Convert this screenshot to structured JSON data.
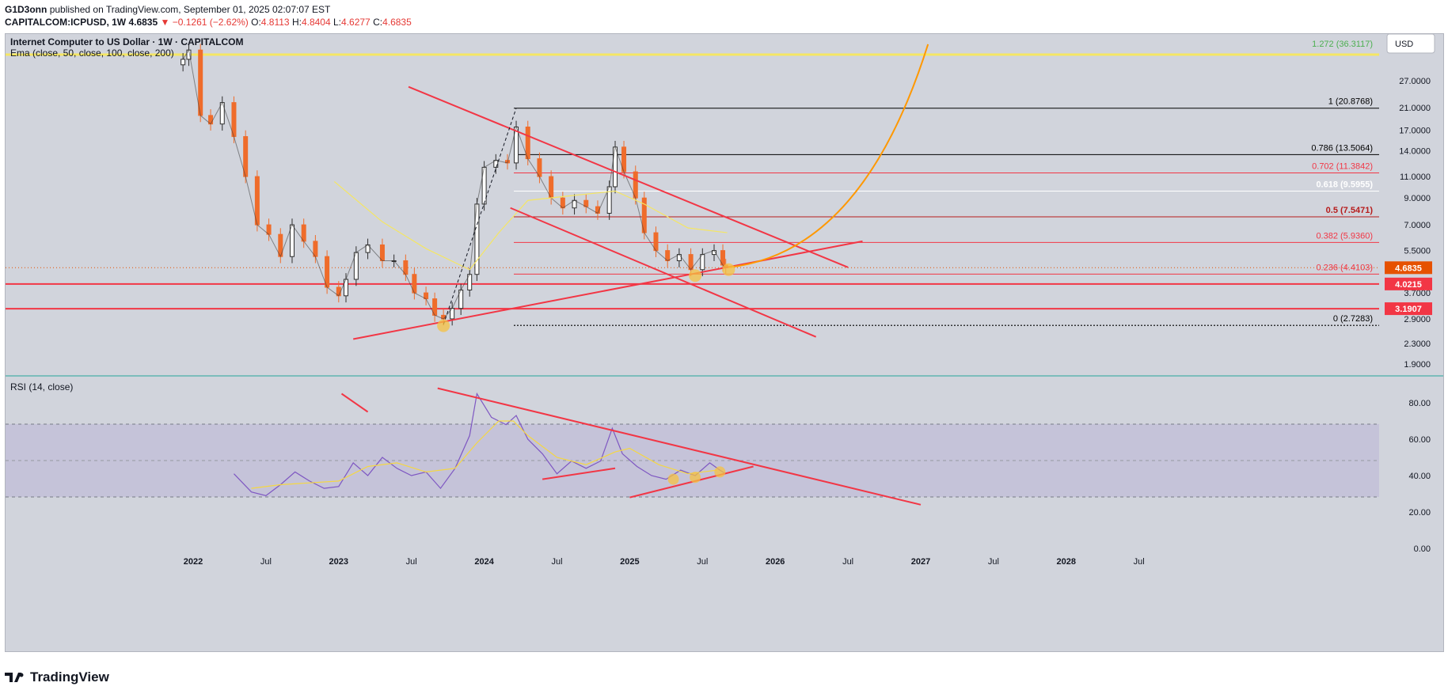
{
  "header": {
    "author": "G1D3onn",
    "published_text": "published on TradingView.com, September 01, 2025 02:07:07 EST",
    "symbol": "CAPITALCOM:ICPUSD, 1W",
    "last": "4.6835",
    "change": "▼ −0.1261 (−2.62%)",
    "o_label": "O:",
    "o": "4.8113",
    "h_label": "H:",
    "h": "4.8404",
    "l_label": "L:",
    "l": "4.6277",
    "c_label": "C:",
    "c": "4.6835"
  },
  "legend": {
    "title": "Internet Computer to US Dollar · 1W · CAPITALCOM",
    "ema": "Ema (close, 50, close, 100, close, 200)",
    "rsi": "RSI (14, close)"
  },
  "currency_button": "USD",
  "footer": {
    "brand": "TradingView"
  },
  "colors": {
    "background": "#d1d4dc",
    "candle_up": "#2e2e2e",
    "candle_down": "#ef6c2b",
    "trendline": "#f23645",
    "fib_black": "#000000",
    "fib_white": "#ffffff",
    "rsi_line": "#7e57c2",
    "rsi_ma": "#f5d742",
    "ema": "#f5e663",
    "arc": "#ff9800",
    "highlight": "#f5c242"
  },
  "chart_data": [
    {
      "type": "candlestick",
      "title": "Internet Computer to US Dollar · 1W · CAPITALCOM",
      "y_scale": "log",
      "ylim": [
        1.7,
        40
      ],
      "y_ticks": [
        "27.0000",
        "21.0000",
        "17.0000",
        "14.0000",
        "11.0000",
        "9.0000",
        "7.0000",
        "5.5000",
        "3.7000",
        "2.9000",
        "2.3000",
        "1.9000"
      ],
      "x_ticks": [
        "2022",
        "Jul",
        "2023",
        "Jul",
        "2024",
        "Jul",
        "2025",
        "Jul",
        "2026",
        "Jul",
        "2027",
        "Jul",
        "2028",
        "Jul"
      ],
      "fib_levels": [
        {
          "ratio": "1.272",
          "value": 36.3117,
          "label": "1.272 (36.3117)"
        },
        {
          "ratio": "1",
          "value": 20.8768,
          "label": "1 (20.8768)"
        },
        {
          "ratio": "0.786",
          "value": 13.5064,
          "label": "0.786 (13.5064)"
        },
        {
          "ratio": "0.702",
          "value": 11.3842,
          "label": "0.702 (11.3842)"
        },
        {
          "ratio": "0.618",
          "value": 9.5955,
          "label": "0.618 (9.5955)"
        },
        {
          "ratio": "0.5",
          "value": 7.5471,
          "label": "0.5 (7.5471)"
        },
        {
          "ratio": "0.382",
          "value": 5.936,
          "label": "0.382 (5.9360)"
        },
        {
          "ratio": "0.236",
          "value": 4.4103,
          "label": "0.236 (4.4103)"
        },
        {
          "ratio": "0",
          "value": 2.7283,
          "label": "0 (2.7283)"
        }
      ],
      "horizontal_levels": [
        {
          "value": 4.0215,
          "label": "4.0215"
        },
        {
          "value": 3.1907,
          "label": "3.1907"
        }
      ],
      "last_price": {
        "value": 4.6835,
        "label": "4.6835"
      },
      "series": [
        {
          "name": "ICPUSD weekly",
          "points": [
            [
              2021.93,
              33
            ],
            [
              2021.97,
              36
            ],
            [
              2022.05,
              19.5
            ],
            [
              2022.12,
              18
            ],
            [
              2022.2,
              22
            ],
            [
              2022.28,
              16
            ],
            [
              2022.36,
              11
            ],
            [
              2022.44,
              7
            ],
            [
              2022.52,
              6.4
            ],
            [
              2022.6,
              5.2
            ],
            [
              2022.68,
              7
            ],
            [
              2022.76,
              6
            ],
            [
              2022.84,
              5.2
            ],
            [
              2022.92,
              3.9
            ],
            [
              2023.0,
              3.6
            ],
            [
              2023.05,
              4.2
            ],
            [
              2023.12,
              5.4
            ],
            [
              2023.2,
              5.8
            ],
            [
              2023.3,
              5
            ],
            [
              2023.38,
              5
            ],
            [
              2023.46,
              4.4
            ],
            [
              2023.52,
              3.7
            ],
            [
              2023.6,
              3.5
            ],
            [
              2023.66,
              3.0
            ],
            [
              2023.72,
              2.9
            ],
            [
              2023.78,
              3.2
            ],
            [
              2023.84,
              3.8
            ],
            [
              2023.9,
              4.4
            ],
            [
              2023.95,
              8.5
            ],
            [
              2024.0,
              12
            ],
            [
              2024.08,
              12.8
            ],
            [
              2024.16,
              12.5
            ],
            [
              2024.22,
              17.5
            ],
            [
              2024.3,
              13
            ],
            [
              2024.38,
              11
            ],
            [
              2024.46,
              9
            ],
            [
              2024.54,
              8.2
            ],
            [
              2024.62,
              8.8
            ],
            [
              2024.7,
              8.3
            ],
            [
              2024.78,
              7.8
            ],
            [
              2024.86,
              10
            ],
            [
              2024.9,
              14.5
            ],
            [
              2024.96,
              11.5
            ],
            [
              2025.04,
              9
            ],
            [
              2025.1,
              6.5
            ],
            [
              2025.18,
              5.5
            ],
            [
              2025.26,
              5
            ],
            [
              2025.34,
              5.3
            ],
            [
              2025.42,
              4.6
            ],
            [
              2025.5,
              5.3
            ],
            [
              2025.58,
              5.5
            ],
            [
              2025.64,
              4.8
            ],
            [
              2025.66,
              4.68
            ]
          ]
        },
        {
          "name": "Ema",
          "points": [
            [
              2022.97,
              10.5
            ],
            [
              2023.3,
              7.2
            ],
            [
              2023.6,
              5.6
            ],
            [
              2023.9,
              4.6
            ],
            [
              2024.1,
              6.5
            ],
            [
              2024.3,
              8.8
            ],
            [
              2024.6,
              9.2
            ],
            [
              2024.9,
              9.6
            ],
            [
              2025.1,
              8.5
            ],
            [
              2025.4,
              6.8
            ],
            [
              2025.67,
              6.5
            ]
          ]
        }
      ]
    },
    {
      "type": "line",
      "title": "RSI (14, close)",
      "ylim": [
        0,
        95
      ],
      "y_ticks": [
        "80.00",
        "60.00",
        "40.00",
        "20.00",
        "0.00"
      ],
      "bands": [
        70,
        50,
        30
      ],
      "series": [
        {
          "name": "RSI",
          "points": [
            [
              2022.28,
              41
            ],
            [
              2022.4,
              31
            ],
            [
              2022.5,
              29
            ],
            [
              2022.6,
              35
            ],
            [
              2022.7,
              42
            ],
            [
              2022.8,
              37
            ],
            [
              2022.9,
              33
            ],
            [
              2023.0,
              34
            ],
            [
              2023.1,
              47
            ],
            [
              2023.2,
              40
            ],
            [
              2023.3,
              50
            ],
            [
              2023.4,
              44
            ],
            [
              2023.5,
              40
            ],
            [
              2023.6,
              42
            ],
            [
              2023.7,
              33
            ],
            [
              2023.8,
              44
            ],
            [
              2023.9,
              62
            ],
            [
              2023.95,
              85
            ],
            [
              2024.05,
              72
            ],
            [
              2024.15,
              68
            ],
            [
              2024.22,
              73
            ],
            [
              2024.3,
              60
            ],
            [
              2024.4,
              52
            ],
            [
              2024.5,
              41
            ],
            [
              2024.6,
              48
            ],
            [
              2024.7,
              44
            ],
            [
              2024.8,
              48
            ],
            [
              2024.88,
              66
            ],
            [
              2024.95,
              52
            ],
            [
              2025.05,
              45
            ],
            [
              2025.15,
              40
            ],
            [
              2025.25,
              38
            ],
            [
              2025.35,
              43
            ],
            [
              2025.45,
              40
            ],
            [
              2025.55,
              47
            ],
            [
              2025.62,
              43
            ],
            [
              2025.66,
              41
            ]
          ]
        },
        {
          "name": "RSI MA",
          "points": [
            [
              2022.4,
              33
            ],
            [
              2022.6,
              35
            ],
            [
              2022.8,
              36
            ],
            [
              2023.0,
              37
            ],
            [
              2023.2,
              45
            ],
            [
              2023.4,
              47
            ],
            [
              2023.6,
              42
            ],
            [
              2023.8,
              44
            ],
            [
              2023.95,
              58
            ],
            [
              2024.1,
              70
            ],
            [
              2024.2,
              70
            ],
            [
              2024.3,
              62
            ],
            [
              2024.5,
              50
            ],
            [
              2024.7,
              46
            ],
            [
              2024.9,
              53
            ],
            [
              2025.0,
              55
            ],
            [
              2025.2,
              46
            ],
            [
              2025.4,
              41
            ],
            [
              2025.6,
              43
            ]
          ]
        }
      ]
    }
  ]
}
